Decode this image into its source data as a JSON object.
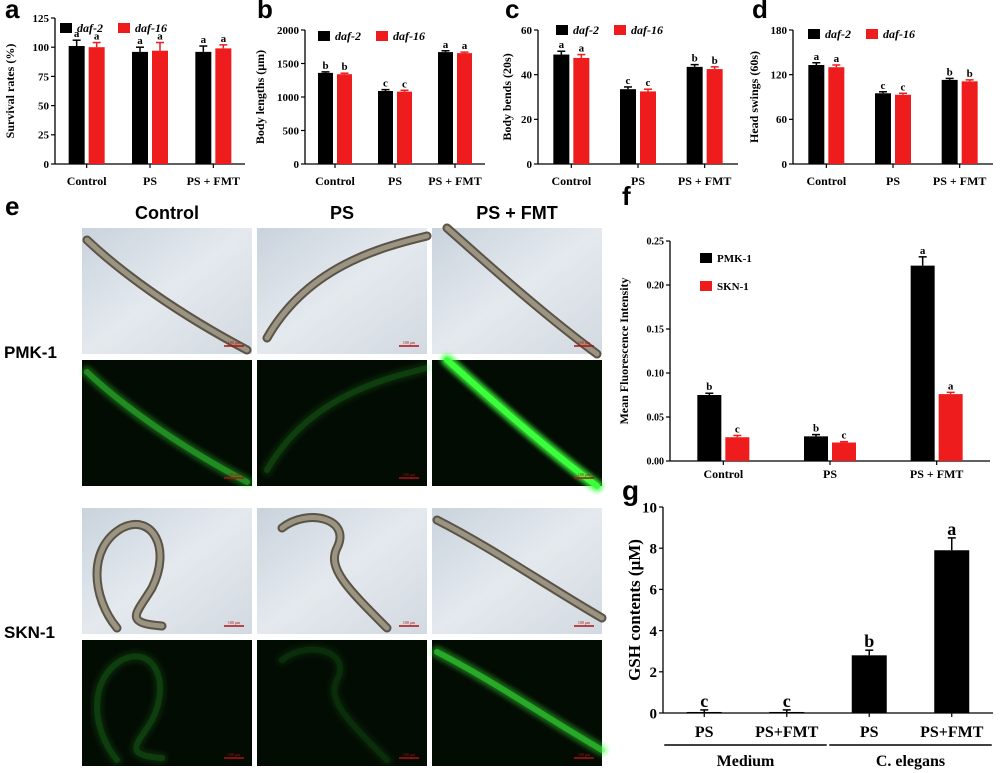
{
  "panels": {
    "e": {
      "letter": "e",
      "columns": [
        "Control",
        "PS",
        "PS + FMT"
      ],
      "rows": [
        "PMK-1",
        "SKN-1"
      ],
      "scale_bar": "100 μm",
      "green_intensity": {
        "pmk": [
          0.35,
          0.12,
          1.0
        ],
        "skn": [
          0.12,
          0.08,
          0.45
        ]
      }
    }
  },
  "colors": {
    "black": "#000000",
    "red": "#ee1c1c",
    "green": "#3cff3c"
  },
  "chart_data": [
    {
      "letter": "a",
      "type": "bar",
      "ylabel": "Survival rates (%)",
      "yticks": [
        0,
        25,
        50,
        75,
        100,
        125
      ],
      "ylim": [
        0,
        125
      ],
      "categories": [
        "Control",
        "PS",
        "PS + FMT"
      ],
      "series": [
        {
          "name": "daf-2",
          "color": "#000000",
          "values": [
            101,
            96,
            96
          ],
          "errors": [
            5,
            4,
            5
          ],
          "labels": [
            "a",
            "a",
            "a"
          ]
        },
        {
          "name": "daf-16",
          "color": "#ee1c1c",
          "values": [
            100,
            97,
            99
          ],
          "errors": [
            4,
            7,
            3
          ],
          "labels": [
            "a",
            "a",
            "a"
          ]
        }
      ]
    },
    {
      "letter": "b",
      "type": "bar",
      "ylabel": "Body lengths (μm)",
      "yticks": [
        0,
        500,
        1000,
        1500,
        2000
      ],
      "ylim": [
        0,
        2000
      ],
      "categories": [
        "Control",
        "PS",
        "PS + FMT"
      ],
      "series": [
        {
          "name": "daf-2",
          "color": "#000000",
          "values": [
            1360,
            1090,
            1670
          ],
          "errors": [
            15,
            20,
            20
          ],
          "labels": [
            "b",
            "c",
            "a"
          ]
        },
        {
          "name": "daf-16",
          "color": "#ee1c1c",
          "values": [
            1340,
            1080,
            1655
          ],
          "errors": [
            15,
            20,
            15
          ],
          "labels": [
            "b",
            "c",
            "a"
          ]
        }
      ]
    },
    {
      "letter": "c",
      "type": "bar",
      "ylabel": "Body bends (20s)",
      "yticks": [
        0,
        20,
        40,
        60
      ],
      "ylim": [
        0,
        60
      ],
      "categories": [
        "Control",
        "PS",
        "PS + FMT"
      ],
      "series": [
        {
          "name": "daf-2",
          "color": "#000000",
          "values": [
            49,
            33.5,
            43.5
          ],
          "errors": [
            1.5,
            1,
            1
          ],
          "labels": [
            "a",
            "c",
            "b"
          ]
        },
        {
          "name": "daf-16",
          "color": "#ee1c1c",
          "values": [
            47.5,
            32.5,
            42.5
          ],
          "errors": [
            1.5,
            1,
            1
          ],
          "labels": [
            "a",
            "c",
            "b"
          ]
        }
      ]
    },
    {
      "letter": "d",
      "type": "bar",
      "ylabel": "Head swings (60s)",
      "yticks": [
        0,
        60,
        120,
        180
      ],
      "ylim": [
        0,
        180
      ],
      "categories": [
        "Control",
        "PS",
        "PS + FMT"
      ],
      "series": [
        {
          "name": "daf-2",
          "color": "#000000",
          "values": [
            133,
            95,
            113
          ],
          "errors": [
            3,
            2,
            2
          ],
          "labels": [
            "a",
            "c",
            "b"
          ]
        },
        {
          "name": "daf-16",
          "color": "#ee1c1c",
          "values": [
            130,
            93,
            111
          ],
          "errors": [
            3,
            2,
            2
          ],
          "labels": [
            "a",
            "c",
            "b"
          ]
        }
      ]
    },
    {
      "letter": "f",
      "type": "bar",
      "ylabel": "Mean Fluorescence Intensity",
      "yticks": [
        0.0,
        0.05,
        0.1,
        0.15,
        0.2,
        0.25
      ],
      "ytick_labels": [
        "0.00",
        "0.05",
        "0.10",
        "0.15",
        "0.20",
        "0.25"
      ],
      "ylim": [
        0,
        0.25
      ],
      "categories": [
        "Control",
        "PS",
        "PS + FMT"
      ],
      "series": [
        {
          "name": "PMK-1",
          "color": "#000000",
          "values": [
            0.075,
            0.028,
            0.222
          ],
          "errors": [
            0.002,
            0.002,
            0.01
          ],
          "labels": [
            "b",
            "b",
            "a"
          ]
        },
        {
          "name": "SKN-1",
          "color": "#ee1c1c",
          "values": [
            0.027,
            0.021,
            0.076
          ],
          "errors": [
            0.002,
            0.001,
            0.002
          ],
          "labels": [
            "c",
            "c",
            "a"
          ]
        }
      ]
    },
    {
      "letter": "g",
      "type": "bar",
      "ylabel": "GSH contents (μM)",
      "yticks": [
        0,
        2,
        4,
        6,
        8,
        10
      ],
      "ylim": [
        0,
        10
      ],
      "categories": [
        "PS",
        "PS+FMT",
        "PS",
        "PS+FMT"
      ],
      "groups": [
        "Medium",
        "C. elegans"
      ],
      "series": [
        {
          "name": "",
          "color": "#000000",
          "values": [
            0.05,
            0.05,
            2.8,
            7.9
          ],
          "errors": [
            0.1,
            0.1,
            0.25,
            0.6
          ],
          "labels": [
            "c",
            "c",
            "b",
            "a"
          ]
        }
      ]
    }
  ]
}
